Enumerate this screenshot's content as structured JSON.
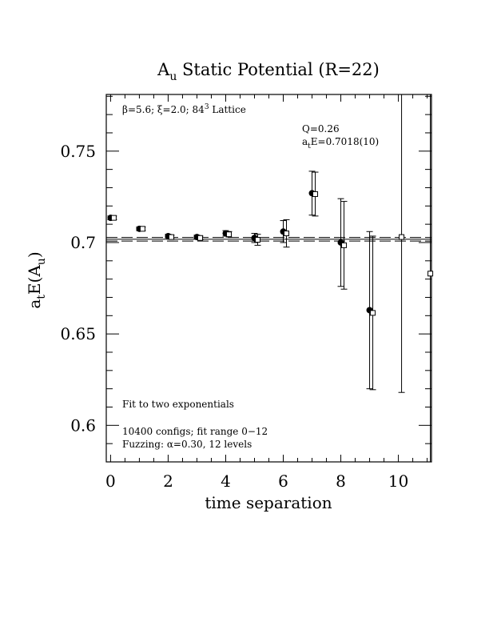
{
  "chart_data": {
    "type": "scatter",
    "title_main": "A",
    "title_sub": "u",
    "title_rest": " Static Potential (R=22)",
    "xlabel": "time separation",
    "ylabel_a": "a",
    "ylabel_t": "t",
    "ylabel_mid": "E(A",
    "ylabel_u": "u",
    "ylabel_end": ")",
    "xlim": [
      -0.15,
      11.15
    ],
    "ylim": [
      0.58,
      0.781
    ],
    "x_ticks": [
      0,
      2,
      4,
      6,
      8,
      10
    ],
    "x_tick_labels": [
      "0",
      "2",
      "4",
      "6",
      "8",
      "10"
    ],
    "y_ticks": [
      0.6,
      0.65,
      0.7,
      0.75
    ],
    "y_tick_labels": [
      "0.6",
      "0.65",
      "0.7",
      "0.75"
    ],
    "grid": false,
    "annotations": {
      "lattice_prefix": "β=5.6; ξ=2.0; 84",
      "lattice_sup": "3",
      "lattice_suffix": " Lattice",
      "q_value": "Q=0.26",
      "energy_a": "a",
      "energy_t": "t",
      "energy_rest": "E=0.7018(10)",
      "fit_note": "Fit to two exponentials",
      "configs_note": "10400 configs; fit range 0−12",
      "fuzz_prefix": "Fuzzing: ",
      "fuzz_alpha": "α",
      "fuzz_rest": "=0.30, 12 levels"
    },
    "fit": {
      "value": 0.7018,
      "error": 0.001
    },
    "series": [
      {
        "marker": "filled-circle",
        "points": [
          {
            "x": 0,
            "y": 0.7135,
            "err": 0.001
          },
          {
            "x": 1,
            "y": 0.7075,
            "err": 0.001
          },
          {
            "x": 2,
            "y": 0.7035,
            "err": 0.001
          },
          {
            "x": 3,
            "y": 0.703,
            "err": 0.001
          },
          {
            "x": 4,
            "y": 0.705,
            "err": 0.0015
          },
          {
            "x": 5,
            "y": 0.7025,
            "err": 0.0025
          },
          {
            "x": 6,
            "y": 0.706,
            "err": 0.006
          },
          {
            "x": 7,
            "y": 0.727,
            "err": 0.012
          },
          {
            "x": 8,
            "y": 0.7,
            "err": 0.024
          },
          {
            "x": 9,
            "y": 0.663,
            "err": 0.043
          }
        ]
      },
      {
        "marker": "open-square",
        "points": [
          {
            "x": 0,
            "y": 0.7135,
            "err": 0.001
          },
          {
            "x": 1,
            "y": 0.7075,
            "err": 0.001
          },
          {
            "x": 2,
            "y": 0.703,
            "err": 0.001
          },
          {
            "x": 3,
            "y": 0.7025,
            "err": 0.001
          },
          {
            "x": 4,
            "y": 0.7045,
            "err": 0.0015
          },
          {
            "x": 5,
            "y": 0.7015,
            "err": 0.003
          },
          {
            "x": 6,
            "y": 0.705,
            "err": 0.0075
          },
          {
            "x": 7,
            "y": 0.7265,
            "err": 0.012
          },
          {
            "x": 8,
            "y": 0.6985,
            "err": 0.024
          },
          {
            "x": 9,
            "y": 0.6615,
            "err": 0.042
          },
          {
            "x": 10,
            "y": 0.703,
            "err": 0.085
          },
          {
            "x": 11,
            "y": 0.683,
            "err": 0.17
          }
        ]
      }
    ]
  }
}
